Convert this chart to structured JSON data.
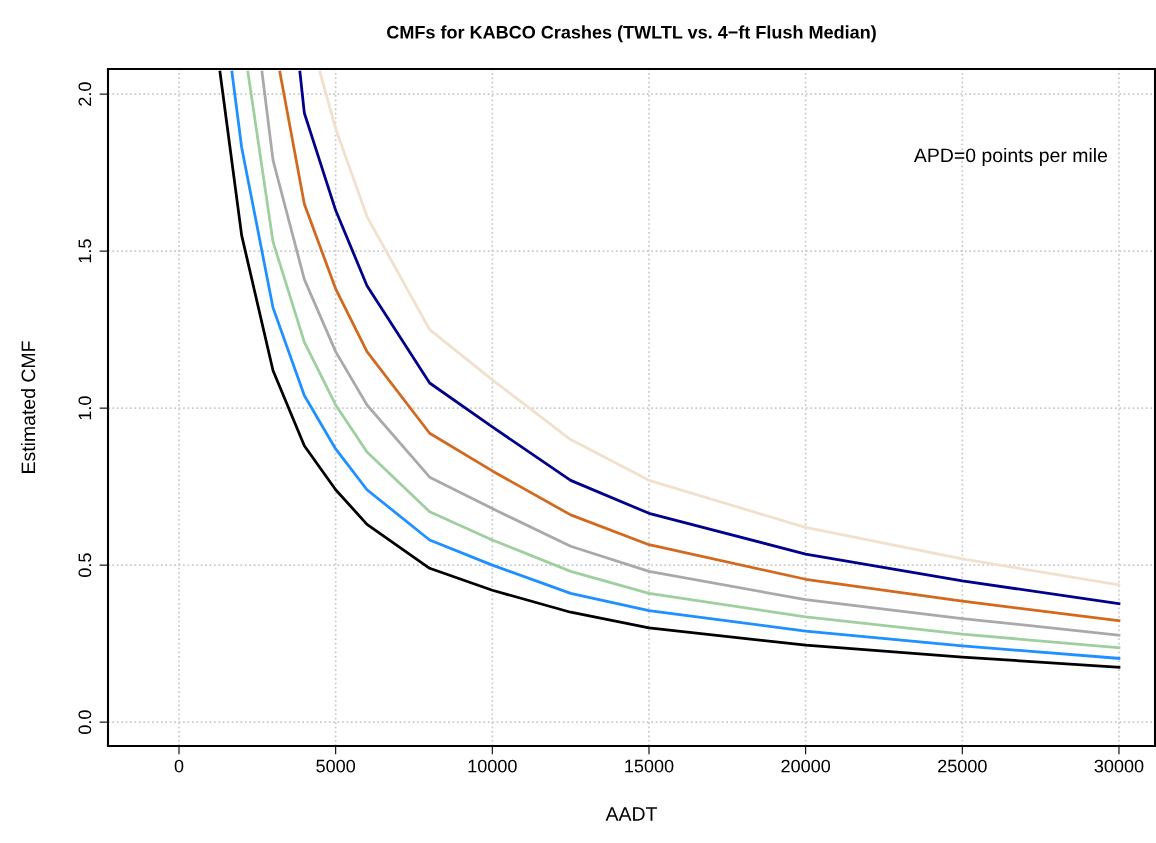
{
  "chart_data": {
    "type": "line",
    "title": "CMFs for KABCO Crashes (TWLTL vs. 4−ft Flush Median)",
    "xlabel": "AADT",
    "ylabel": "Estimated CMF",
    "annotations": [
      "APD=0 points per mile"
    ],
    "xlim": [
      -2266,
      31150
    ],
    "ylim": [
      -0.076,
      2.08
    ],
    "xticks": [
      0,
      5000,
      10000,
      15000,
      20000,
      25000,
      30000
    ],
    "yticks": [
      {
        "value": 0,
        "label": "0.0"
      },
      {
        "value": 0.5,
        "label": "0.5"
      },
      {
        "value": 1,
        "label": "1.0"
      },
      {
        "value": 1.5,
        "label": "1.5"
      },
      {
        "value": 2,
        "label": "2.0"
      }
    ],
    "grid": true,
    "marker": "none",
    "line_style": "solid",
    "series": [
      {
        "color": "#f0e0cc",
        "x": [
          4500,
          5000,
          6000,
          8000,
          10000,
          12500,
          15000,
          20000,
          25000,
          30000
        ],
        "values": [
          2.07,
          1.89,
          1.61,
          1.25,
          1.09,
          0.9,
          0.77,
          0.62,
          0.52,
          0.437
        ]
      },
      {
        "color": "#00008b",
        "x": [
          3860,
          4000,
          5000,
          6000,
          8000,
          10000,
          12500,
          15000,
          20000,
          25000,
          30000
        ],
        "values": [
          2.07,
          1.94,
          1.63,
          1.39,
          1.08,
          0.94,
          0.77,
          0.665,
          0.535,
          0.45,
          0.377
        ]
      },
      {
        "color": "#d2691e",
        "x": [
          3220,
          4000,
          5000,
          6000,
          8000,
          10000,
          12500,
          15000,
          20000,
          25000,
          30000
        ],
        "values": [
          2.07,
          1.65,
          1.38,
          1.18,
          0.92,
          0.8,
          0.66,
          0.565,
          0.455,
          0.385,
          0.323
        ]
      },
      {
        "color": "#a9a9a9",
        "x": [
          2650,
          3000,
          4000,
          5000,
          6000,
          8000,
          10000,
          12500,
          15000,
          20000,
          25000,
          30000
        ],
        "values": [
          2.07,
          1.79,
          1.41,
          1.18,
          1.01,
          0.78,
          0.68,
          0.56,
          0.48,
          0.39,
          0.33,
          0.277
        ]
      },
      {
        "color": "#9fcf9f",
        "x": [
          2200,
          3000,
          4000,
          5000,
          6000,
          8000,
          10000,
          12500,
          15000,
          20000,
          25000,
          30000
        ],
        "values": [
          2.07,
          1.53,
          1.21,
          1.01,
          0.86,
          0.67,
          0.58,
          0.48,
          0.41,
          0.335,
          0.28,
          0.237
        ]
      },
      {
        "color": "#1e90ff",
        "x": [
          1690,
          2000,
          3000,
          4000,
          5000,
          6000,
          8000,
          10000,
          12500,
          15000,
          20000,
          25000,
          30000
        ],
        "values": [
          2.07,
          1.83,
          1.32,
          1.04,
          0.87,
          0.74,
          0.58,
          0.5,
          0.41,
          0.355,
          0.29,
          0.243,
          0.203
        ]
      },
      {
        "color": "#000000",
        "x": [
          1309,
          2000,
          3000,
          4000,
          5000,
          6000,
          8000,
          10000,
          12500,
          15000,
          20000,
          25000,
          30000
        ],
        "values": [
          2.07,
          1.55,
          1.12,
          0.88,
          0.74,
          0.63,
          0.49,
          0.42,
          0.35,
          0.3,
          0.245,
          0.207,
          0.175
        ]
      }
    ]
  }
}
